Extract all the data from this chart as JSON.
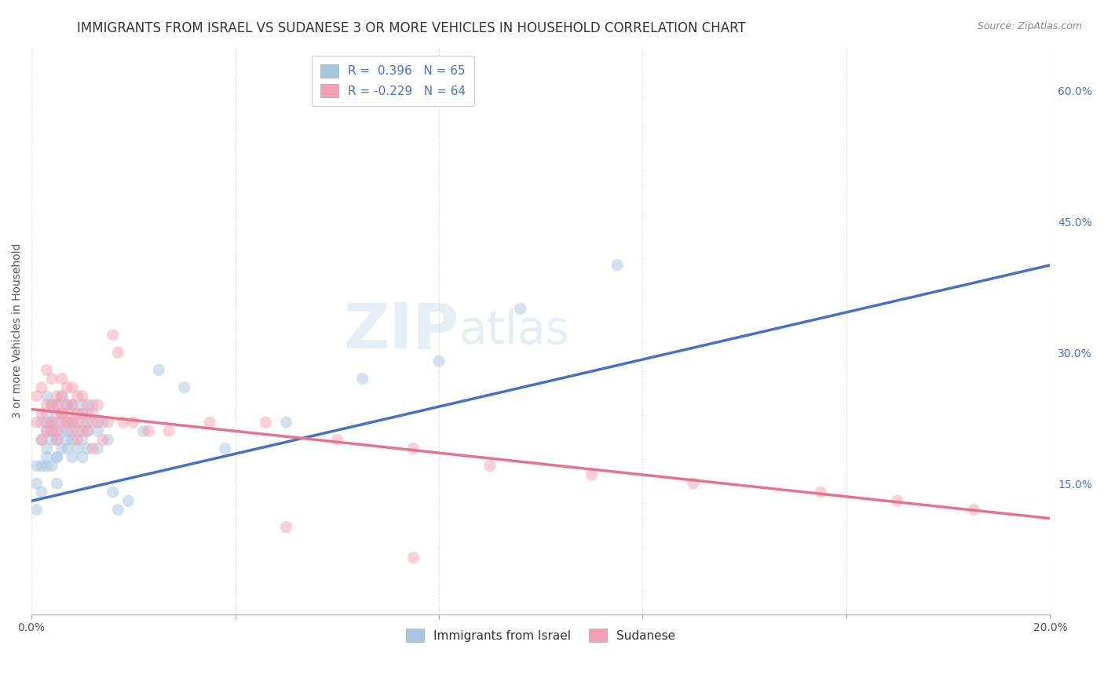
{
  "title": "IMMIGRANTS FROM ISRAEL VS SUDANESE 3 OR MORE VEHICLES IN HOUSEHOLD CORRELATION CHART",
  "source": "Source: ZipAtlas.com",
  "ylabel": "3 or more Vehicles in Household",
  "xmin": 0.0,
  "xmax": 0.2,
  "ymin": 0.0,
  "ymax": 0.65,
  "x_ticks": [
    0.0,
    0.04,
    0.08,
    0.12,
    0.16,
    0.2
  ],
  "x_tick_labels": [
    "0.0%",
    "",
    "",
    "",
    "",
    "20.0%"
  ],
  "y_ticks_right": [
    0.15,
    0.3,
    0.45,
    0.6
  ],
  "y_tick_labels_right": [
    "15.0%",
    "30.0%",
    "45.0%",
    "60.0%"
  ],
  "israel_color": "#a8c4e0",
  "sudanese_color": "#f4a0b4",
  "israel_line_color": "#4472c4",
  "sudanese_line_color": "#e8728a",
  "legend_R_israel": "0.396",
  "legend_N_israel": "65",
  "legend_R_sudanese": "-0.229",
  "legend_N_sudanese": "64",
  "legend_label_israel": "Immigrants from Israel",
  "legend_label_sudanese": "Sudanese",
  "israel_trend_x": [
    0.0,
    0.2
  ],
  "israel_trend_y": [
    0.13,
    0.4
  ],
  "sudanese_trend_x": [
    0.0,
    0.2
  ],
  "sudanese_trend_y": [
    0.235,
    0.11
  ],
  "israel_scatter_x": [
    0.001,
    0.001,
    0.001,
    0.002,
    0.002,
    0.002,
    0.002,
    0.003,
    0.003,
    0.003,
    0.003,
    0.003,
    0.003,
    0.004,
    0.004,
    0.004,
    0.004,
    0.004,
    0.005,
    0.005,
    0.005,
    0.005,
    0.005,
    0.005,
    0.006,
    0.006,
    0.006,
    0.006,
    0.007,
    0.007,
    0.007,
    0.007,
    0.007,
    0.008,
    0.008,
    0.008,
    0.008,
    0.009,
    0.009,
    0.009,
    0.01,
    0.01,
    0.01,
    0.01,
    0.011,
    0.011,
    0.011,
    0.012,
    0.012,
    0.013,
    0.013,
    0.014,
    0.015,
    0.016,
    0.017,
    0.019,
    0.022,
    0.025,
    0.03,
    0.038,
    0.05,
    0.065,
    0.08,
    0.096,
    0.115
  ],
  "israel_scatter_y": [
    0.12,
    0.15,
    0.17,
    0.14,
    0.17,
    0.2,
    0.22,
    0.17,
    0.19,
    0.21,
    0.23,
    0.25,
    0.18,
    0.2,
    0.22,
    0.24,
    0.17,
    0.21,
    0.18,
    0.2,
    0.22,
    0.24,
    0.18,
    0.15,
    0.19,
    0.21,
    0.23,
    0.25,
    0.2,
    0.22,
    0.24,
    0.19,
    0.21,
    0.2,
    0.22,
    0.24,
    0.18,
    0.21,
    0.23,
    0.19,
    0.2,
    0.22,
    0.24,
    0.18,
    0.21,
    0.23,
    0.19,
    0.22,
    0.24,
    0.21,
    0.19,
    0.22,
    0.2,
    0.14,
    0.12,
    0.13,
    0.21,
    0.28,
    0.26,
    0.19,
    0.22,
    0.27,
    0.29,
    0.35,
    0.4
  ],
  "sudanese_scatter_x": [
    0.001,
    0.001,
    0.002,
    0.002,
    0.002,
    0.003,
    0.003,
    0.003,
    0.003,
    0.004,
    0.004,
    0.004,
    0.004,
    0.005,
    0.005,
    0.005,
    0.005,
    0.005,
    0.006,
    0.006,
    0.006,
    0.006,
    0.007,
    0.007,
    0.007,
    0.007,
    0.008,
    0.008,
    0.008,
    0.008,
    0.009,
    0.009,
    0.009,
    0.009,
    0.01,
    0.01,
    0.01,
    0.011,
    0.011,
    0.011,
    0.012,
    0.012,
    0.013,
    0.013,
    0.014,
    0.015,
    0.016,
    0.017,
    0.018,
    0.02,
    0.023,
    0.027,
    0.035,
    0.046,
    0.06,
    0.075,
    0.09,
    0.11,
    0.13,
    0.155,
    0.17,
    0.185,
    0.05,
    0.075
  ],
  "sudanese_scatter_y": [
    0.22,
    0.25,
    0.2,
    0.23,
    0.26,
    0.21,
    0.24,
    0.22,
    0.28,
    0.21,
    0.24,
    0.22,
    0.27,
    0.23,
    0.25,
    0.21,
    0.24,
    0.2,
    0.23,
    0.25,
    0.22,
    0.27,
    0.22,
    0.24,
    0.26,
    0.23,
    0.22,
    0.24,
    0.26,
    0.21,
    0.23,
    0.25,
    0.22,
    0.2,
    0.23,
    0.25,
    0.21,
    0.22,
    0.24,
    0.21,
    0.23,
    0.19,
    0.22,
    0.24,
    0.2,
    0.22,
    0.32,
    0.3,
    0.22,
    0.22,
    0.21,
    0.21,
    0.22,
    0.22,
    0.2,
    0.19,
    0.17,
    0.16,
    0.15,
    0.14,
    0.13,
    0.12,
    0.1,
    0.065
  ],
  "background_color": "#ffffff",
  "grid_color": "#cccccc",
  "title_fontsize": 12,
  "axis_fontsize": 10,
  "tick_fontsize": 10,
  "scatter_size": 120,
  "scatter_alpha": 0.5
}
